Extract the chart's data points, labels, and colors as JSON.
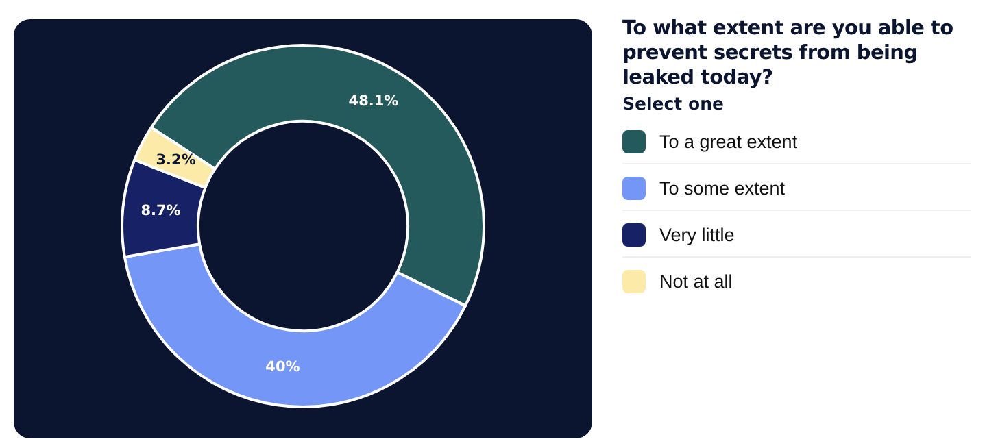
{
  "chart_data": {
    "type": "donut",
    "title": "To what extent are you able to prevent secrets from being leaked today?",
    "subtitle": "Select one",
    "categories": [
      "To a great extent",
      "To some extent",
      "Very little",
      "Not at all"
    ],
    "values": [
      48.1,
      40,
      8.7,
      3.2
    ],
    "value_labels": [
      "48.1%",
      "40%",
      "8.7%",
      "3.2%"
    ],
    "colors": [
      "#245a5c",
      "#7496f6",
      "#172166",
      "#fbeaa8"
    ],
    "legend": "right"
  }
}
